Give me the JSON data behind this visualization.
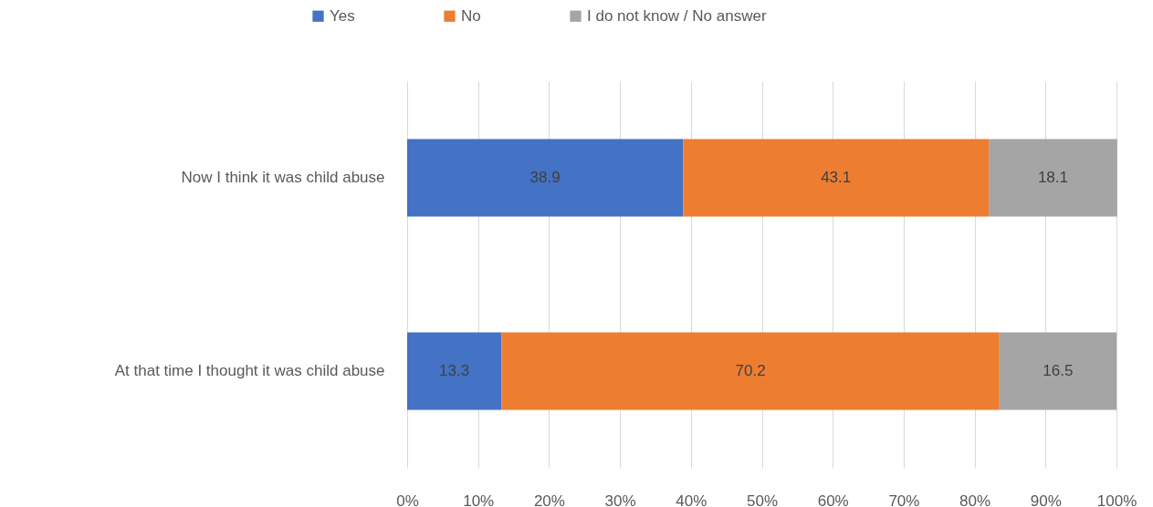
{
  "chart_data": {
    "type": "bar",
    "orientation": "horizontal",
    "stacked": true,
    "categories": [
      "Now I think it was child abuse",
      "At that time I thought it was child abuse"
    ],
    "series": [
      {
        "name": "Yes",
        "color": "#4472c4",
        "values": [
          38.9,
          13.3
        ]
      },
      {
        "name": "No",
        "color": "#ed7d31",
        "values": [
          43.1,
          70.2
        ]
      },
      {
        "name": "I do not know / No answer",
        "color": "#a5a5a5",
        "values": [
          18.1,
          16.5
        ]
      }
    ],
    "xlim": [
      0,
      100
    ],
    "xticks": [
      {
        "value": 0,
        "label": "0%"
      },
      {
        "value": 10,
        "label": "10%"
      },
      {
        "value": 20,
        "label": "20%"
      },
      {
        "value": 30,
        "label": "30%"
      },
      {
        "value": 40,
        "label": "40%"
      },
      {
        "value": 50,
        "label": "50%"
      },
      {
        "value": 60,
        "label": "60%"
      },
      {
        "value": 70,
        "label": "70%"
      },
      {
        "value": 80,
        "label": "80%"
      },
      {
        "value": 90,
        "label": "90%"
      },
      {
        "value": 100,
        "label": "100%"
      }
    ],
    "grid": "x",
    "legend": "top",
    "data_labels": true
  }
}
